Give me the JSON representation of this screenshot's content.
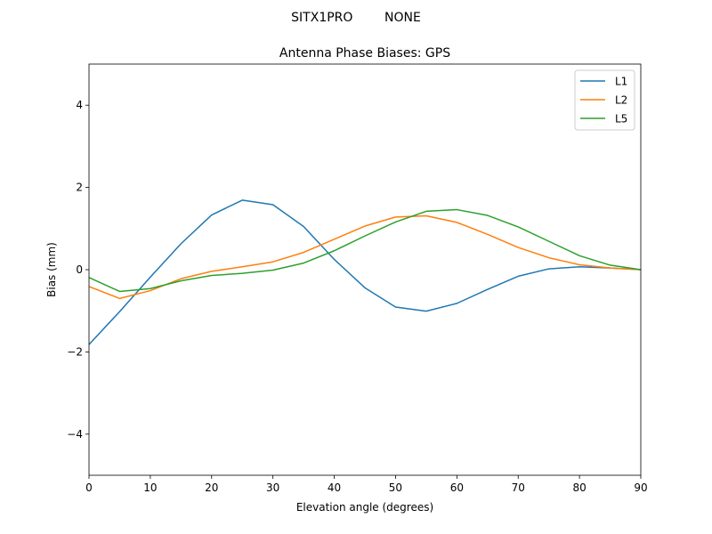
{
  "suptitle": "SITX1PRO        NONE",
  "chart_data": {
    "type": "line",
    "title": "Antenna Phase Biases: GPS",
    "xlabel": "Elevation angle (degrees)",
    "ylabel": "Bias (mm)",
    "xlim": [
      0,
      90
    ],
    "ylim": [
      -5,
      5
    ],
    "xticks": [
      0,
      10,
      20,
      30,
      40,
      50,
      60,
      70,
      80,
      90
    ],
    "yticks": [
      -4,
      -2,
      0,
      2,
      4
    ],
    "ytick_labels": [
      "−4",
      "−2",
      "0",
      "2",
      "4"
    ],
    "grid": false,
    "legend_position": "top-right",
    "x": [
      0,
      5,
      10,
      15,
      20,
      25,
      30,
      35,
      40,
      45,
      50,
      55,
      60,
      65,
      70,
      75,
      80,
      85,
      90
    ],
    "series": [
      {
        "name": "L1",
        "color": "#1f77b4",
        "values": [
          -1.82,
          -1.02,
          -0.18,
          0.63,
          1.33,
          1.69,
          1.58,
          1.05,
          0.25,
          -0.44,
          -0.91,
          -1.01,
          -0.82,
          -0.48,
          -0.16,
          0.02,
          0.07,
          0.04,
          0.0
        ]
      },
      {
        "name": "L2",
        "color": "#ff7f0e",
        "values": [
          -0.41,
          -0.7,
          -0.51,
          -0.22,
          -0.04,
          0.07,
          0.19,
          0.42,
          0.74,
          1.06,
          1.28,
          1.31,
          1.15,
          0.86,
          0.54,
          0.29,
          0.12,
          0.04,
          0.0
        ]
      },
      {
        "name": "L5",
        "color": "#2ca02c",
        "values": [
          -0.19,
          -0.53,
          -0.46,
          -0.27,
          -0.14,
          -0.09,
          -0.01,
          0.16,
          0.46,
          0.82,
          1.16,
          1.42,
          1.46,
          1.32,
          1.04,
          0.69,
          0.34,
          0.11,
          0.0
        ]
      }
    ]
  }
}
